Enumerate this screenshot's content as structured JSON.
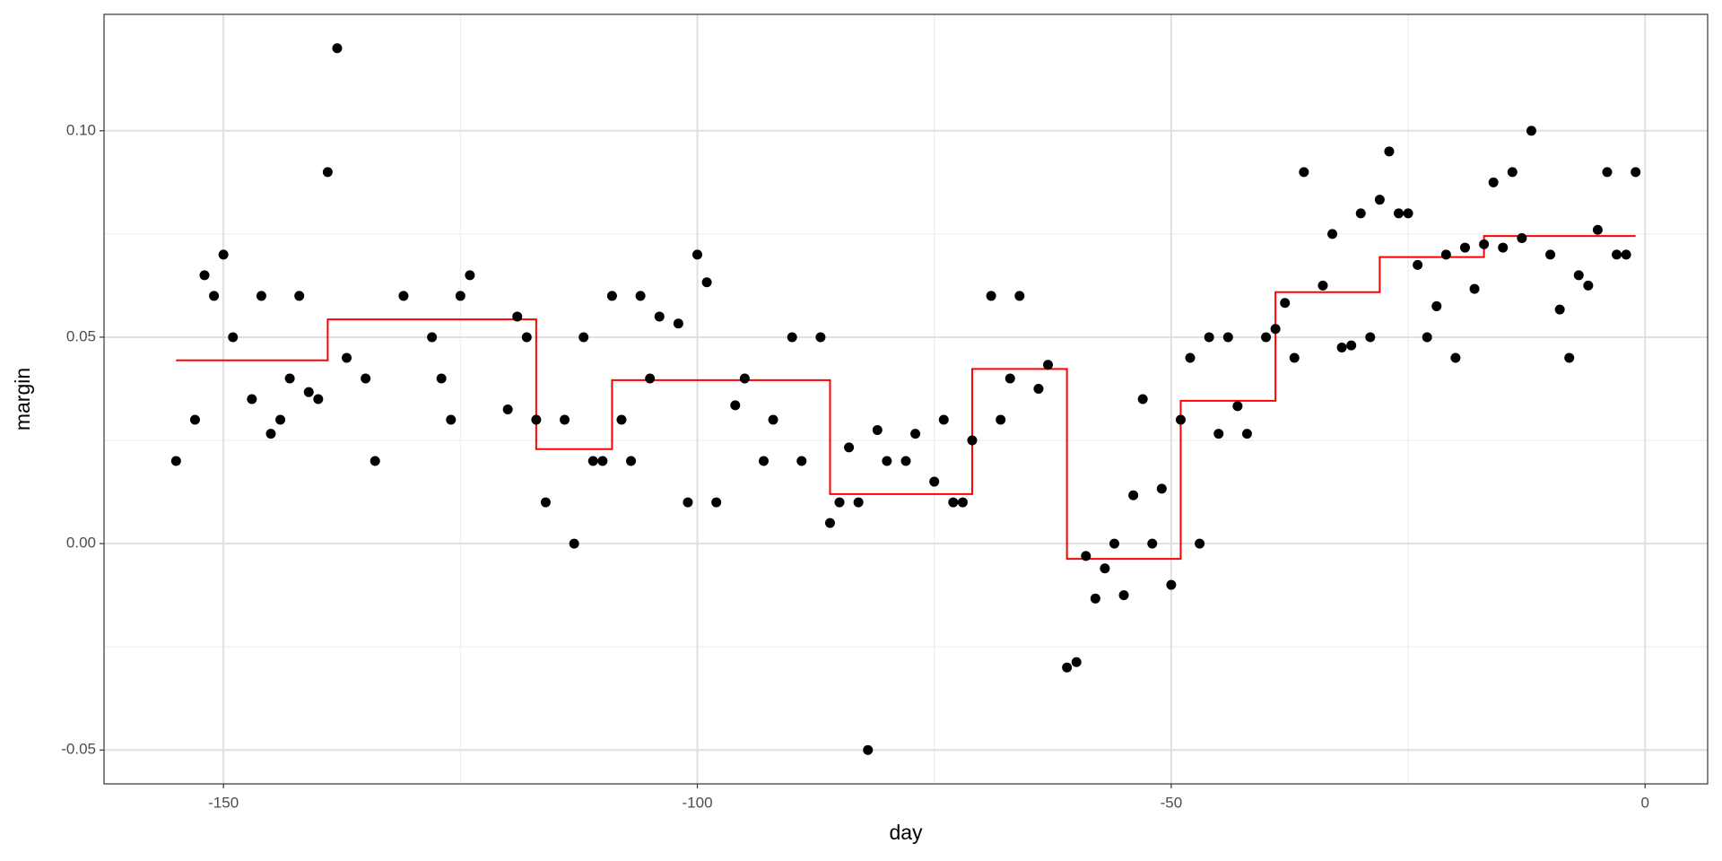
{
  "chart_data": {
    "type": "scatter",
    "x_label": "day",
    "y_label": "margin",
    "xlim": [
      -162.6,
      6.6
    ],
    "ylim": [
      -0.0582,
      0.1282
    ],
    "xticks": [
      -150,
      -100,
      -50,
      0
    ],
    "yticks": [
      {
        "value": -0.05,
        "label": "-0.05"
      },
      {
        "value": 0,
        "label": "0.00"
      },
      {
        "value": 0.05,
        "label": "0.05"
      },
      {
        "value": 0.1,
        "label": "0.10"
      }
    ],
    "xminorticks": [
      -125,
      -75,
      -25
    ],
    "yminorticks": [
      -0.025,
      0.025,
      0.075
    ],
    "grid": true,
    "series": [
      {
        "color": "black",
        "x": [
          -155,
          -153,
          -152,
          -151,
          -150,
          -149,
          -147,
          -146,
          -145,
          -144,
          -143,
          -142,
          -141,
          -140,
          -139,
          -138,
          -137,
          -135,
          -134,
          -131,
          -128,
          -127,
          -126,
          -125,
          -124,
          -120,
          -119,
          -118,
          -117,
          -116,
          -114,
          -113,
          -112,
          -111,
          -110,
          -109,
          -108,
          -107,
          -106,
          -105,
          -104,
          -102,
          -101,
          -100,
          -99,
          -98,
          -96,
          -95,
          -93,
          -92,
          -90,
          -89,
          -87,
          -86,
          -85,
          -84,
          -83,
          -82,
          -81,
          -80,
          -78,
          -77,
          -75,
          -74,
          -73,
          -72,
          -71,
          -69,
          -68,
          -67,
          -66,
          -64,
          -63,
          -61,
          -60,
          -59,
          -58,
          -57,
          -56,
          -55,
          -54,
          -53,
          -52,
          -51,
          -50,
          -49,
          -48,
          -47,
          -46,
          -45,
          -44,
          -43,
          -42,
          -40,
          -39,
          -38,
          -37,
          -36,
          -34,
          -33,
          -32,
          -31,
          -30,
          -29,
          -28,
          -27,
          -26,
          -25,
          -24,
          -23,
          -22,
          -21,
          -20,
          -19,
          -18,
          -17,
          -16,
          -15,
          -14,
          -13,
          -12,
          -10,
          -9,
          -8,
          -7,
          -6,
          -5,
          -4,
          -3,
          -2,
          -1
        ],
        "values": [
          0.02,
          0.03,
          0.065,
          0.06,
          0.07,
          0.05,
          0.035,
          0.06,
          0.0266,
          0.03,
          0.04,
          0.06,
          0.0367,
          0.035,
          0.09,
          0.12,
          0.045,
          0.04,
          0.02,
          0.06,
          0.05,
          0.04,
          0.03,
          0.06,
          0.065,
          0.0325,
          0.055,
          0.05,
          0.03,
          0.01,
          0.03,
          0,
          0.05,
          0.02,
          0.02,
          0.06,
          0.03,
          0.02,
          0.06,
          0.04,
          0.055,
          0.0533,
          0.01,
          0.07,
          0.0633,
          0.01,
          0.0335,
          0.04,
          0.02,
          0.03,
          0.05,
          0.02,
          0.05,
          0.005,
          0.01,
          0.0233,
          0.01,
          -0.05,
          0.0275,
          0.02,
          0.02,
          0.0266,
          0.015,
          0.03,
          0.01,
          0.01,
          0.025,
          0.06,
          0.03,
          0.04,
          0.06,
          0.0375,
          0.0433,
          -0.03,
          -0.0287,
          -0.003,
          -0.0133,
          -0.006,
          0,
          -0.0125,
          0.0117,
          0.035,
          0,
          0.0133,
          -0.01,
          0.03,
          0.045,
          0,
          0.05,
          0.0266,
          0.05,
          0.0333,
          0.0266,
          0.05,
          0.052,
          0.0583,
          0.045,
          0.09,
          0.0625,
          0.075,
          0.0475,
          0.048,
          0.08,
          0.05,
          0.0833,
          0.095,
          0.08,
          0.08,
          0.0675,
          0.05,
          0.0575,
          0.07,
          0.045,
          0.0717,
          0.0617,
          0.0725,
          0.0875,
          0.0717,
          0.09,
          0.074,
          0.1,
          0.07,
          0.0567,
          0.045,
          0.065,
          0.0625,
          0.076,
          0.09,
          0.07,
          0.07,
          0.09
        ]
      }
    ],
    "step": {
      "color": "red",
      "x": [
        -155,
        -139,
        -117,
        -109,
        -86,
        -71,
        -61,
        -49,
        -39,
        -28,
        -17,
        -1
      ],
      "values": [
        0.0444,
        0.0543,
        0.0229,
        0.0396,
        0.012,
        0.0423,
        -0.0037,
        0.0346,
        0.0609,
        0.0694,
        0.0745,
        0.0745
      ]
    }
  }
}
